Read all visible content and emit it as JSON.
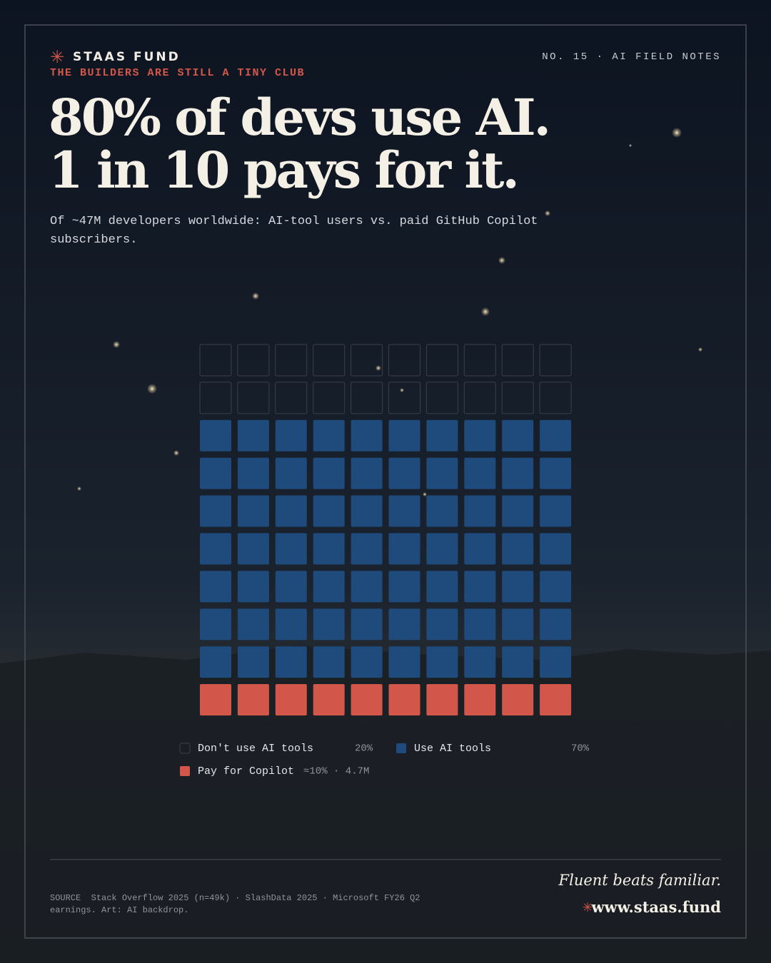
{
  "header": {
    "brand": "STAAS FUND",
    "kicker": "THE BUILDERS ARE STILL A TINY CLUB",
    "issue": "NO. 15 · AI FIELD NOTES"
  },
  "chart_data": {
    "type": "waffle",
    "title": [
      "80% of devs use AI.",
      "1 in 10 pays for it."
    ],
    "subtitle": "Of ~47M developers worldwide: AI-tool users vs. paid GitHub Copilot subscribers.",
    "series": [
      {
        "name": "Don't use AI tools",
        "color": "none",
        "values": [
          20
        ],
        "value_labels": [
          "20%"
        ]
      },
      {
        "name": "Use AI tools",
        "color": "#1f4a7c",
        "values": [
          70
        ],
        "value_labels": [
          "70%"
        ]
      },
      {
        "name": "Pay for Copilot",
        "color": "#d2574a",
        "values": [
          10
        ],
        "value_labels": [
          "≈10% · 4.7M"
        ]
      }
    ]
  },
  "footer": {
    "source_label": "SOURCE",
    "source": "Stack Overflow 2025 (n=49k) · SlashData 2025 · Microsoft FY26 Q2 earnings. Art: AI backdrop.",
    "tagline": "Fluent beats familiar.",
    "url": "www.staas.fund"
  }
}
